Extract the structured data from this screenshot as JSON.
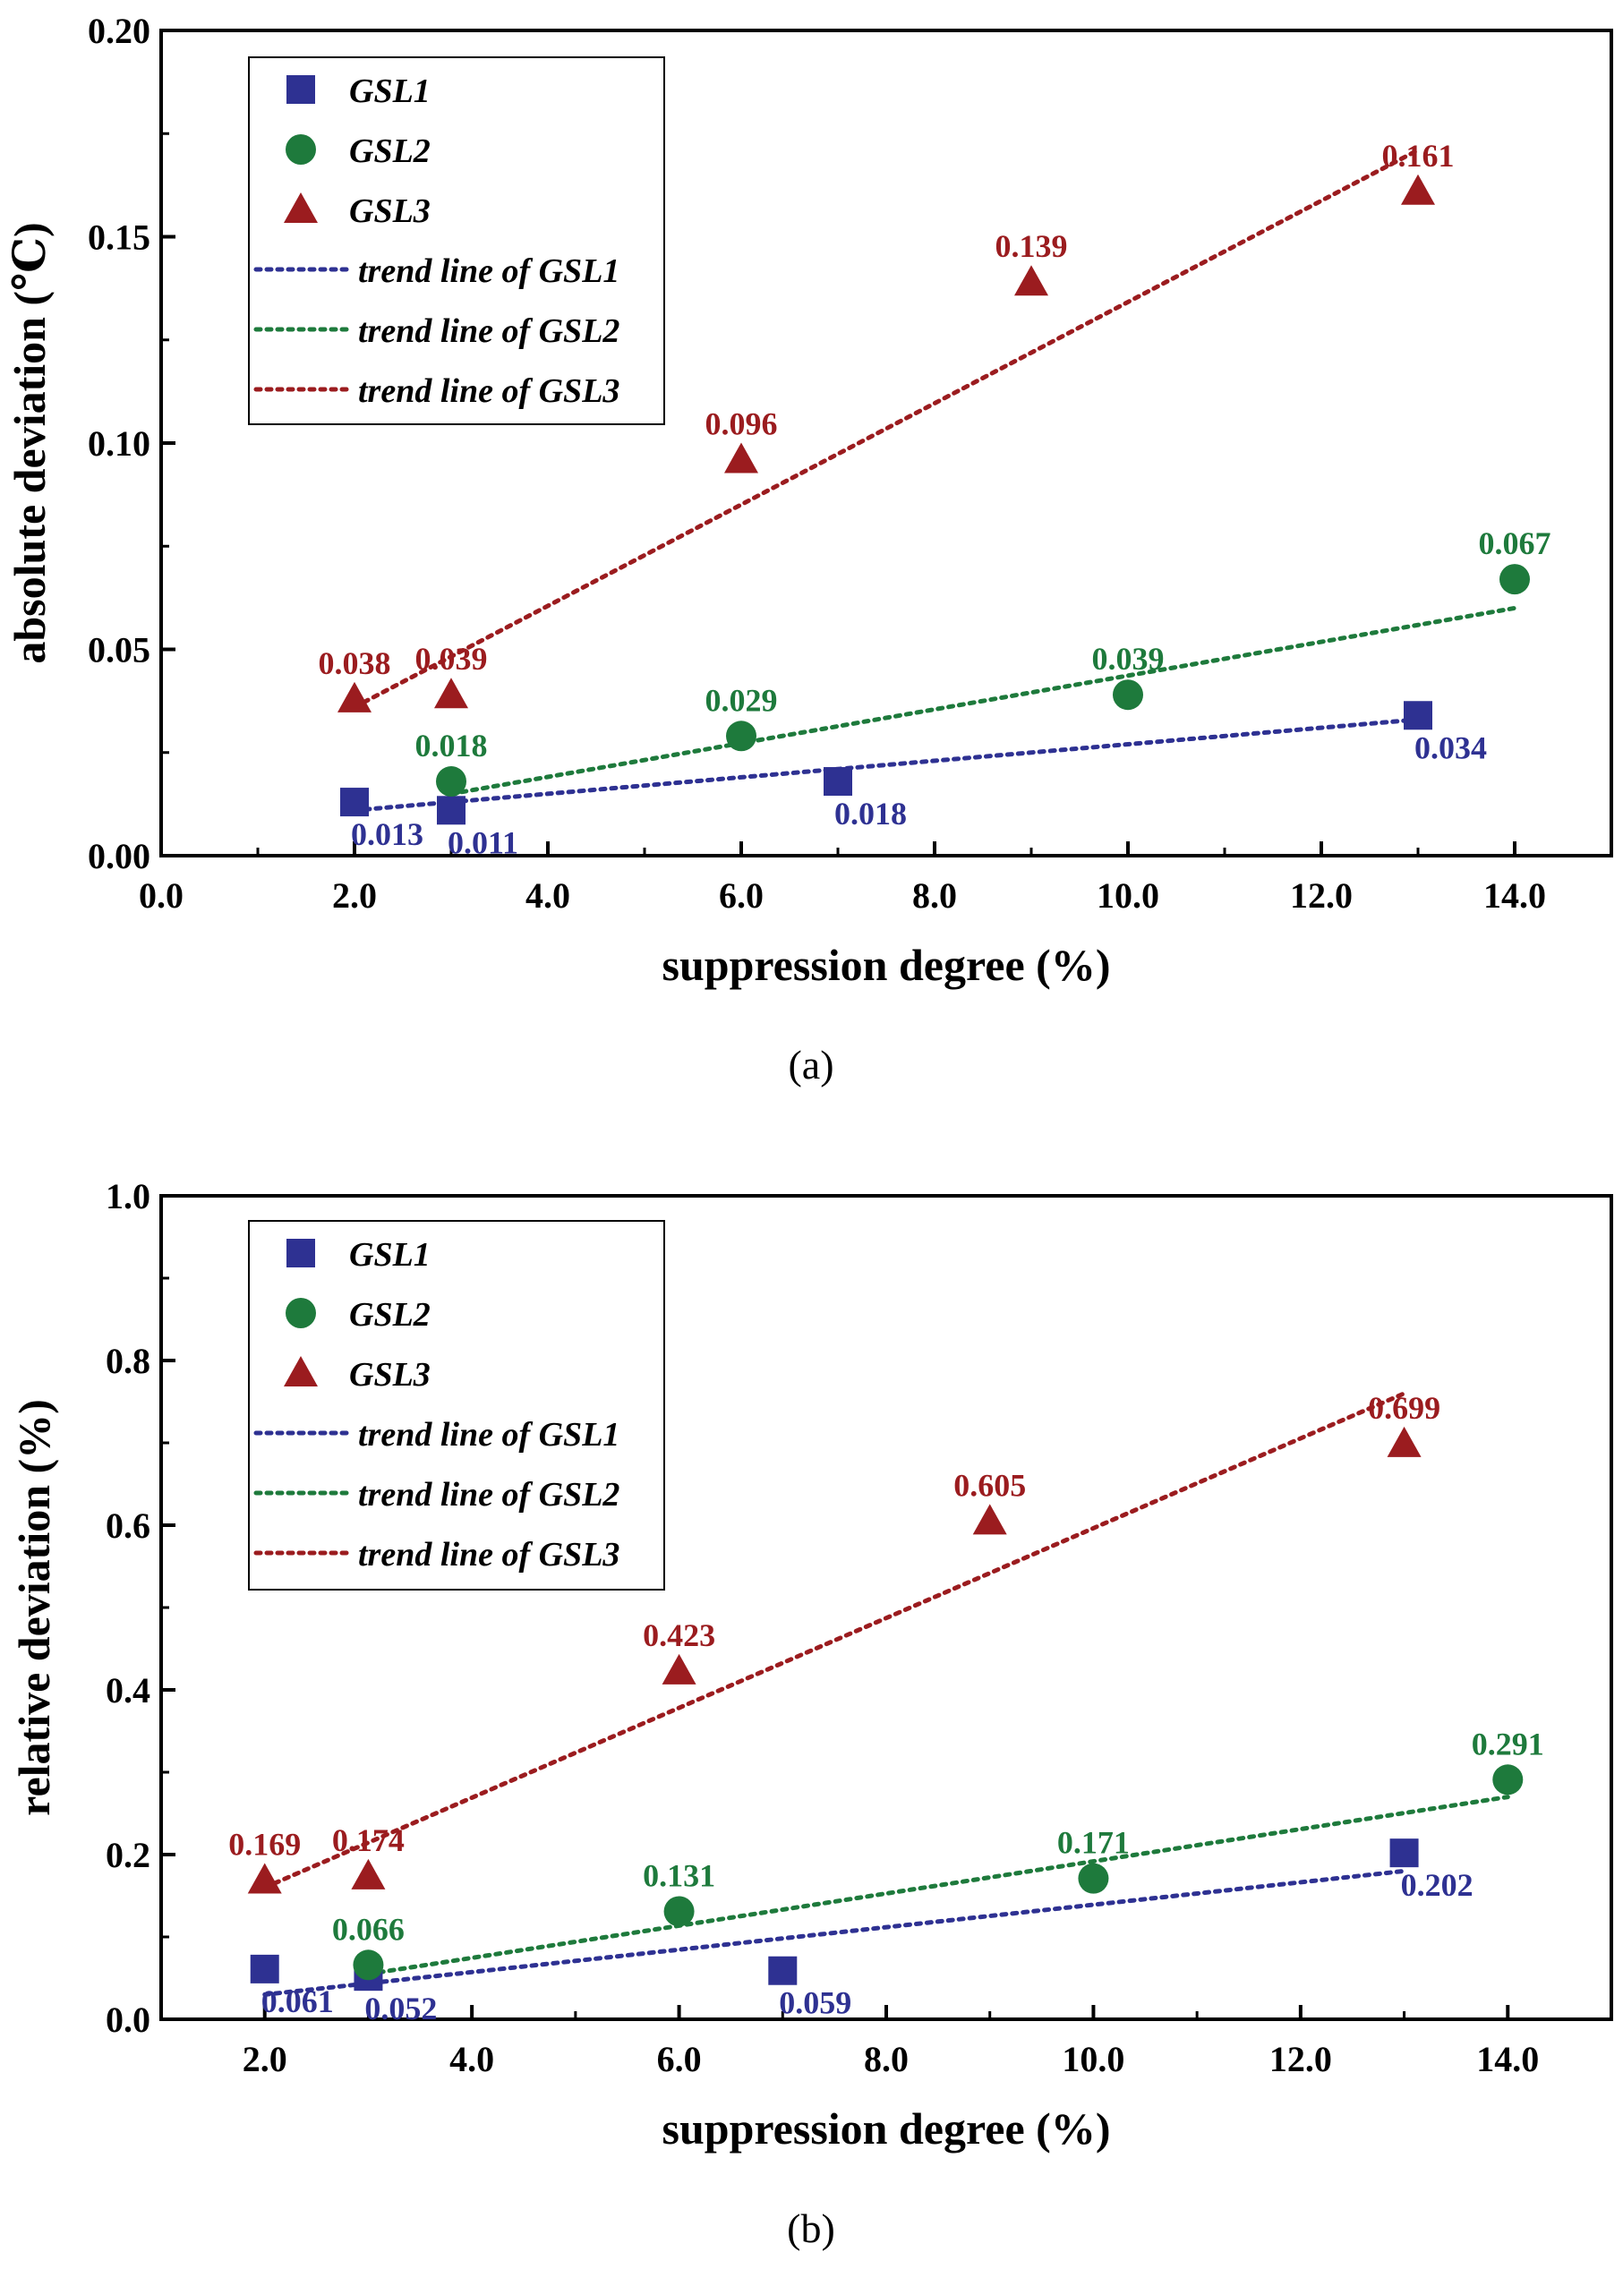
{
  "chart_data": [
    {
      "id": "a",
      "type": "scatter",
      "caption": "(a)",
      "xlabel": "suppression degree (%)",
      "ylabel": "absolute deviation (℃)",
      "xlim": [
        0,
        15
      ],
      "ylim": [
        0,
        0.2
      ],
      "x_ticks": [
        0.0,
        2.0,
        4.0,
        6.0,
        8.0,
        10.0,
        12.0,
        14.0
      ],
      "x_tick_labels": [
        "0.0",
        "2.0",
        "4.0",
        "6.0",
        "8.0",
        "10.0",
        "12.0",
        "14.0"
      ],
      "y_ticks": [
        0.0,
        0.05,
        0.1,
        0.15,
        0.2
      ],
      "y_tick_labels": [
        "0.00",
        "0.05",
        "0.10",
        "0.15",
        "0.20"
      ],
      "legend_position": "top-left",
      "series": [
        {
          "name": "GSL1",
          "marker": "square",
          "color": "#2e3192",
          "x": [
            2,
            3,
            7,
            13
          ],
          "y": [
            0.013,
            0.011,
            0.018,
            0.034
          ],
          "labels": [
            "0.013",
            "0.011",
            "0.018",
            "0.034"
          ],
          "label_positions": [
            "below-right",
            "below-right",
            "below-right",
            "below-right"
          ],
          "trend_name": "trend line of GSL1",
          "trend": {
            "x": [
              2,
              13
            ],
            "y": [
              0.011,
              0.033
            ]
          }
        },
        {
          "name": "GSL2",
          "marker": "circle",
          "color": "#1e7a3c",
          "x": [
            3,
            6,
            10,
            14
          ],
          "y": [
            0.018,
            0.029,
            0.039,
            0.067
          ],
          "labels": [
            "0.018",
            "0.029",
            "0.039",
            "0.067"
          ],
          "label_positions": [
            "above",
            "above",
            "above",
            "above"
          ],
          "trend_name": "trend line of GSL2",
          "trend": {
            "x": [
              3,
              14
            ],
            "y": [
              0.015,
              0.06
            ]
          }
        },
        {
          "name": "GSL3",
          "marker": "triangle",
          "color": "#9b1c1f",
          "x": [
            2,
            3,
            6,
            9,
            13
          ],
          "y": [
            0.038,
            0.039,
            0.096,
            0.139,
            0.161
          ],
          "labels": [
            "0.038",
            "0.039",
            "0.096",
            "0.139",
            "0.161"
          ],
          "label_positions": [
            "above",
            "above",
            "above",
            "above",
            "above"
          ],
          "trend_name": "trend line of GSL3",
          "trend": {
            "x": [
              2,
              13
            ],
            "y": [
              0.036,
              0.171
            ]
          }
        }
      ]
    },
    {
      "id": "b",
      "type": "scatter",
      "caption": "(b)",
      "xlabel": "suppression degree (%)",
      "ylabel": "relative deviation (%)",
      "xlim": [
        1,
        15
      ],
      "ylim": [
        0,
        1.0
      ],
      "x_ticks": [
        2.0,
        4.0,
        6.0,
        8.0,
        10.0,
        12.0,
        14.0
      ],
      "x_tick_labels": [
        "2.0",
        "4.0",
        "6.0",
        "8.0",
        "10.0",
        "12.0",
        "14.0"
      ],
      "y_ticks": [
        0.0,
        0.2,
        0.4,
        0.6,
        0.8,
        1.0
      ],
      "y_tick_labels": [
        "0.0",
        "0.2",
        "0.4",
        "0.6",
        "0.8",
        "1.0"
      ],
      "legend_position": "top-left",
      "series": [
        {
          "name": "GSL1",
          "marker": "square",
          "color": "#2e3192",
          "x": [
            2,
            3,
            7,
            13
          ],
          "y": [
            0.061,
            0.052,
            0.059,
            0.202
          ],
          "labels": [
            "0.061",
            "0.052",
            "0.059",
            "0.202"
          ],
          "label_positions": [
            "below-right",
            "below-right",
            "below-right",
            "below-right"
          ],
          "trend_name": "trend line of GSL1",
          "trend": {
            "x": [
              2,
              13
            ],
            "y": [
              0.03,
              0.18
            ]
          }
        },
        {
          "name": "GSL2",
          "marker": "circle",
          "color": "#1e7a3c",
          "x": [
            3,
            6,
            10,
            14
          ],
          "y": [
            0.066,
            0.131,
            0.171,
            0.291
          ],
          "labels": [
            "0.066",
            "0.131",
            "0.171",
            "0.291"
          ],
          "label_positions": [
            "above",
            "above",
            "above",
            "above"
          ],
          "trend_name": "trend line of GSL2",
          "trend": {
            "x": [
              3,
              14
            ],
            "y": [
              0.055,
              0.27
            ]
          }
        },
        {
          "name": "GSL3",
          "marker": "triangle",
          "color": "#9b1c1f",
          "x": [
            2,
            3,
            6,
            9,
            13
          ],
          "y": [
            0.169,
            0.174,
            0.423,
            0.605,
            0.699
          ],
          "labels": [
            "0.169",
            "0.174",
            "0.423",
            "0.605",
            "0.699"
          ],
          "label_positions": [
            "above",
            "above",
            "above",
            "above",
            "above"
          ],
          "trend_name": "trend line of GSL3",
          "trend": {
            "x": [
              2,
              13
            ],
            "y": [
              0.16,
              0.76
            ]
          }
        }
      ]
    }
  ]
}
